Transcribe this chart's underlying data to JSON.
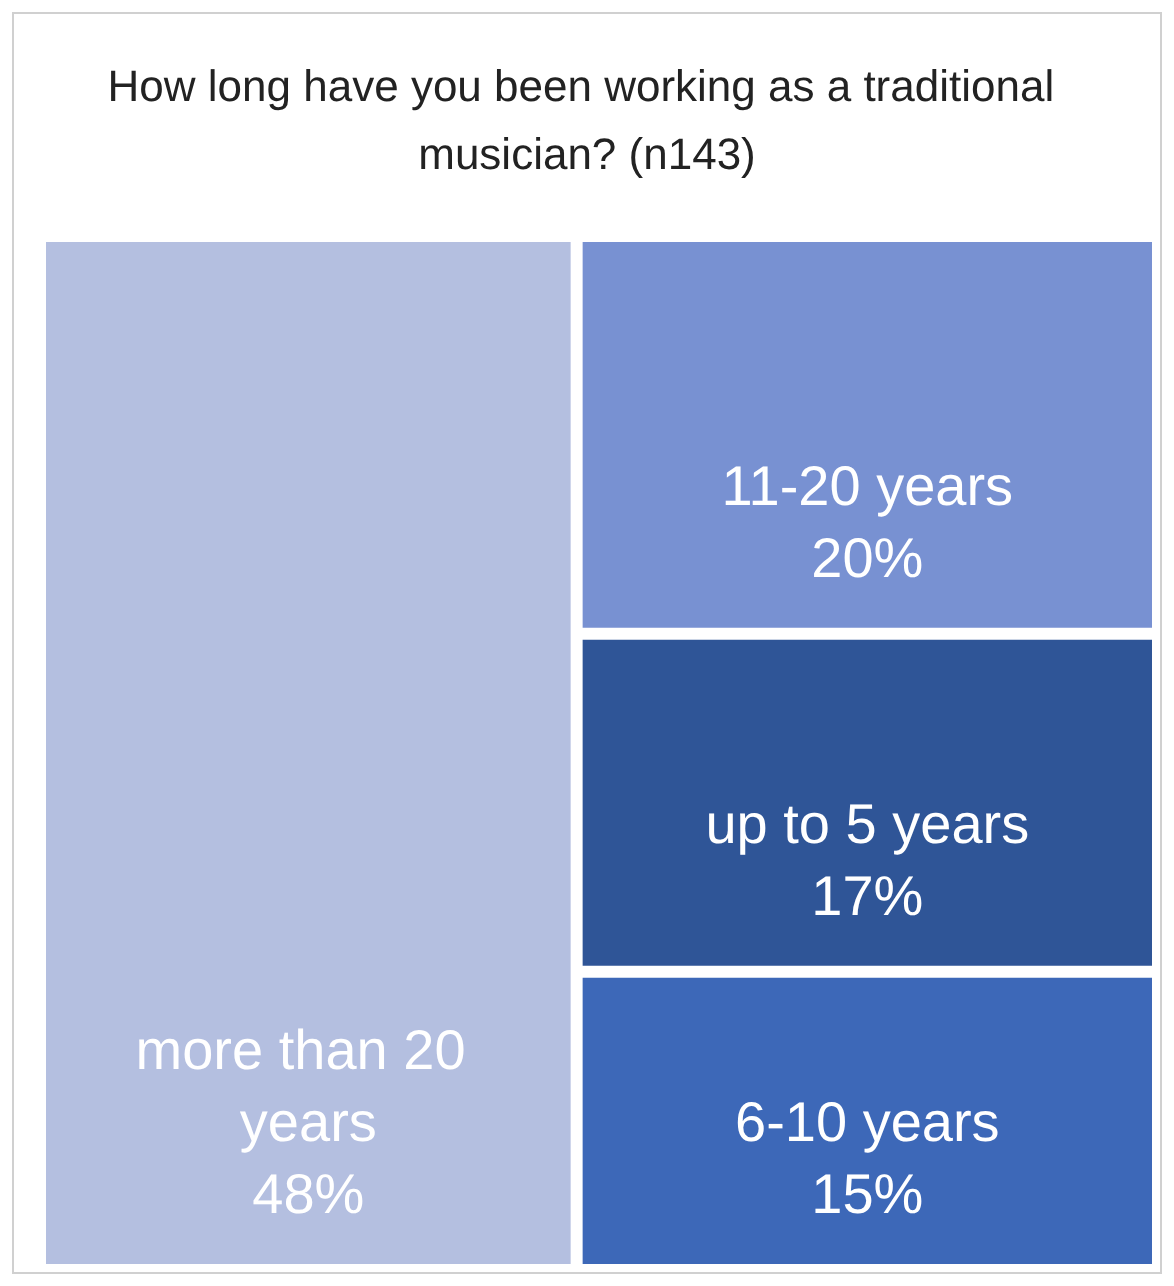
{
  "chart_data": {
    "type": "other",
    "title": "How long have you been working as a traditional musician? (n143)",
    "categories": [
      "more than 20 years",
      "11-20 years",
      "up to 5 years",
      "6-10 years"
    ],
    "values": [
      48,
      20,
      17,
      15
    ],
    "value_labels": [
      "48%",
      "20%",
      "17%",
      "15%"
    ],
    "colors": [
      "#b4bfe0",
      "#7891d2",
      "#2f5597",
      "#3d68b8"
    ]
  }
}
